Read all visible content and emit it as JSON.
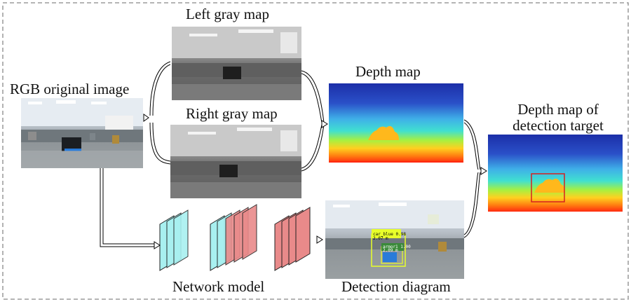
{
  "labels": {
    "rgb": "RGB original image",
    "left_gray": "Left gray map",
    "right_gray": "Right gray map",
    "depth": "Depth map",
    "depth_target_line1": "Depth map of",
    "depth_target_line2": "detection target",
    "network": "Network model",
    "detection": "Detection diagram"
  },
  "detection_tags": {
    "car": "car_blue 0.98",
    "car_dist": "2.07 m",
    "armor": "armor1 1.00",
    "armor_dist": "2.09 m"
  },
  "colors": {
    "block_cyan": "#a8f0f0",
    "block_red": "#e98a8a",
    "target_box": "#d62020",
    "detect_box": "#e8ff2a"
  }
}
